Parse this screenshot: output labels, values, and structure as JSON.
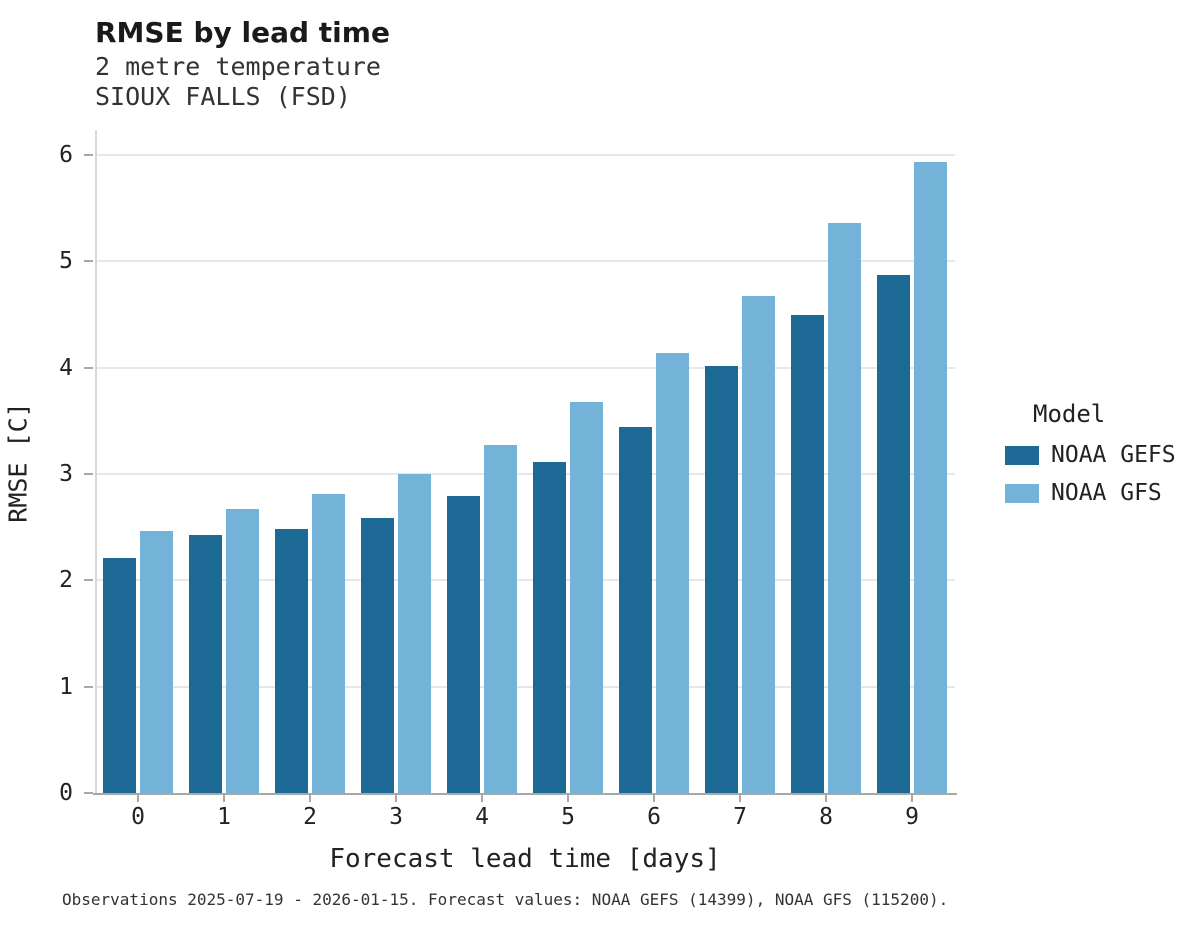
{
  "header": {
    "title": "RMSE by lead time",
    "subtitle1": "2 metre temperature",
    "subtitle2": "SIOUX FALLS (FSD)"
  },
  "chart_data": {
    "type": "bar",
    "title": "RMSE by lead time",
    "subtitle": "2 metre temperature — SIOUX FALLS (FSD)",
    "categories": [
      "0",
      "1",
      "2",
      "3",
      "4",
      "5",
      "6",
      "7",
      "8",
      "9"
    ],
    "series": [
      {
        "name": "NOAA GEFS",
        "color": "#1d6996",
        "values": [
          2.21,
          2.43,
          2.48,
          2.59,
          2.79,
          3.11,
          3.44,
          4.02,
          4.5,
          4.87
        ]
      },
      {
        "name": "NOAA GFS",
        "color": "#73b3d8",
        "values": [
          2.46,
          2.67,
          2.81,
          3.0,
          3.27,
          3.68,
          4.14,
          4.67,
          5.36,
          5.93
        ]
      }
    ],
    "xlabel": "Forecast lead time [days]",
    "ylabel": "RMSE [C]",
    "ylim": [
      0,
      6
    ],
    "yticks": [
      0,
      1,
      2,
      3,
      4,
      5,
      6
    ],
    "grid": true,
    "legend_title": "Model",
    "legend_position": "right"
  },
  "footer": {
    "caption": "Observations 2025-07-19 - 2026-01-15. Forecast values: NOAA GEFS (14399), NOAA GFS (115200)."
  }
}
